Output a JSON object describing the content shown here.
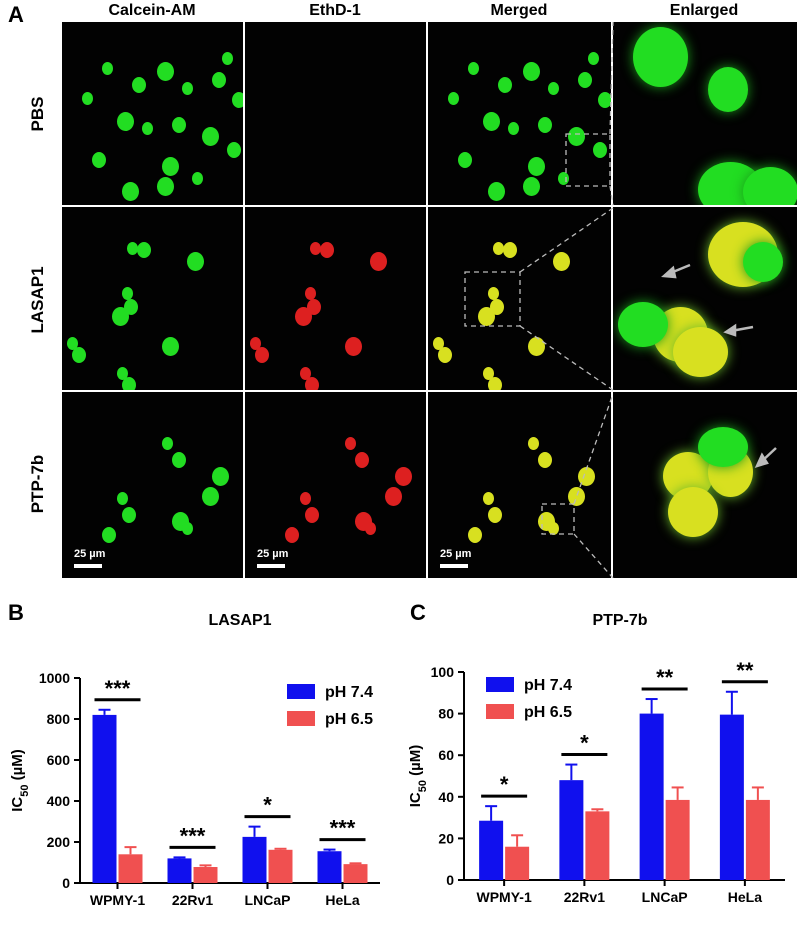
{
  "figure": {
    "panel_a_label": "A",
    "panel_b_label": "B",
    "panel_c_label": "C",
    "columns": [
      "Calcein-AM",
      "EthD-1",
      "Merged",
      "Enlarged"
    ],
    "rows": [
      "PBS",
      "LASAP1",
      "PTP-7b"
    ],
    "scale_bar_label": "25 µm"
  },
  "chart_data": [
    {
      "type": "bar",
      "title": "LASAP1",
      "ylabel": "IC50 (µM)",
      "ylim": [
        0,
        1000
      ],
      "yticks": [
        "0",
        "200",
        "400",
        "600",
        "800",
        "1000"
      ],
      "categories": [
        "WPMY-1",
        "22Rv1",
        "LNCaP",
        "HeLa"
      ],
      "series": [
        {
          "name": "pH 7.4",
          "color": "#1010ee",
          "values": [
            820,
            120,
            225,
            155
          ],
          "errors": [
            25,
            5,
            50,
            8
          ]
        },
        {
          "name": "pH 6.5",
          "color": "#f05050",
          "values": [
            140,
            78,
            162,
            92
          ],
          "errors": [
            35,
            8,
            5,
            4
          ]
        }
      ],
      "significance": [
        "***",
        "***",
        "*",
        "***"
      ],
      "legend_position": "top-right"
    },
    {
      "type": "bar",
      "title": "PTP-7b",
      "ylabel": "IC50 (µM)",
      "ylim": [
        0,
        100
      ],
      "yticks": [
        "0",
        "20",
        "40",
        "60",
        "80",
        "100"
      ],
      "categories": [
        "WPMY-1",
        "22Rv1",
        "LNCaP",
        "HeLa"
      ],
      "series": [
        {
          "name": "pH 7.4",
          "color": "#1010ee",
          "values": [
            28.5,
            48,
            80,
            79.5
          ],
          "errors": [
            7,
            7.5,
            7,
            11
          ]
        },
        {
          "name": "pH 6.5",
          "color": "#f05050",
          "values": [
            16,
            33,
            38.5,
            38.5
          ],
          "errors": [
            5.5,
            1,
            6,
            6
          ]
        }
      ],
      "significance": [
        "*",
        "*",
        "**",
        "**"
      ],
      "legend_position": "top-left"
    }
  ]
}
